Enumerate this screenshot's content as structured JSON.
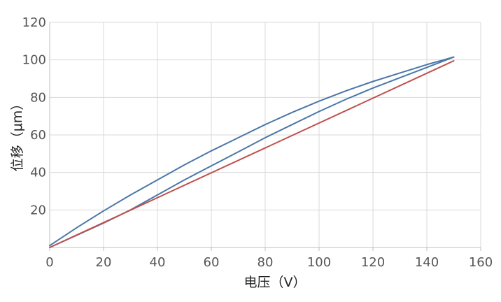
{
  "chart_data": {
    "type": "line",
    "title": "",
    "xlabel": "电压（V）",
    "ylabel": "位移（μm）",
    "xlim": [
      0,
      160
    ],
    "ylim": [
      0,
      120
    ],
    "x_ticks": [
      0,
      20,
      40,
      60,
      80,
      100,
      120,
      140,
      160
    ],
    "y_ticks": [
      20,
      40,
      60,
      80,
      100,
      120
    ],
    "grid": true,
    "legend": "none",
    "series": [
      {
        "color": "#4a77a8",
        "x": [
          0,
          10,
          20,
          30,
          40,
          50,
          60,
          70,
          80,
          90,
          100,
          110,
          120,
          130,
          140,
          150
        ],
        "y": [
          1,
          10.5,
          19.5,
          28,
          36,
          44,
          51.5,
          58.5,
          65.5,
          72,
          78,
          83.5,
          88.5,
          93,
          97.5,
          101.5
        ]
      },
      {
        "color": "#4a77a8",
        "x": [
          0,
          10,
          20,
          30,
          40,
          50,
          60,
          70,
          80,
          90,
          100,
          110,
          120,
          130,
          140,
          150
        ],
        "y": [
          0,
          6.5,
          13,
          20,
          28,
          36,
          43.5,
          51,
          58.5,
          65.5,
          72.5,
          79,
          85,
          90.5,
          96,
          101.5
        ]
      },
      {
        "color": "#c0504d",
        "x": [
          0,
          150
        ],
        "y": [
          0,
          99.5
        ]
      }
    ]
  }
}
